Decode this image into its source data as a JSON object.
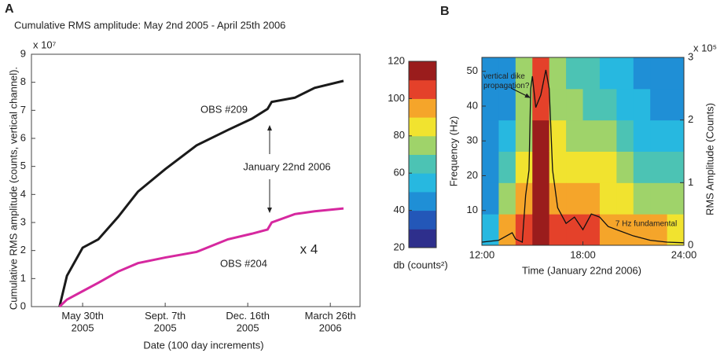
{
  "chart_data": [
    {
      "type": "line",
      "panel_label": "A",
      "title": "Cumulative RMS amplitude:  May 2nd 2005 - April 25th 2006",
      "y_exponent": "x 10⁷",
      "xlabel": "Date (100 day increments)",
      "ylabel": "Cumulative RMS amplitude (counts, vertical channel).",
      "x": [
        0,
        9,
        28,
        47,
        71,
        95,
        128,
        166,
        204,
        233,
        252,
        257,
        285,
        309,
        344
      ],
      "series": [
        {
          "name": "OBS #209",
          "color": "#1a1a1a",
          "values": [
            0,
            1.1,
            2.1,
            2.4,
            3.2,
            4.1,
            4.9,
            5.75,
            6.3,
            6.7,
            7.05,
            7.3,
            7.45,
            7.8,
            8.05
          ]
        },
        {
          "name": "OBS #204",
          "color": "#d6289f",
          "values": [
            0,
            0.25,
            0.55,
            0.85,
            1.25,
            1.55,
            1.75,
            1.95,
            2.4,
            2.6,
            2.75,
            3.0,
            3.3,
            3.4,
            3.5
          ]
        }
      ],
      "xlim": [
        -34,
        364
      ],
      "xticks": [
        {
          "value": 28,
          "label": "May 30th\n2005"
        },
        {
          "value": 128,
          "label": "Sept. 7th\n2005"
        },
        {
          "value": 228,
          "label": "Dec. 16th\n2005"
        },
        {
          "value": 328,
          "label": "March 26th\n2006"
        }
      ],
      "ylim": [
        0,
        9
      ],
      "yticks": [
        0,
        1,
        2,
        3,
        4,
        5,
        6,
        7,
        8,
        9
      ],
      "annotations": [
        {
          "text": "January 22nd 2006"
        },
        {
          "text": "x 4"
        }
      ]
    },
    {
      "type": "heatmap",
      "panel_label": "B",
      "xlabel": "Time (January 22nd 2006)",
      "ylabel": "Frequency (Hz)",
      "y2label": "RMS Amplitude (Counts)",
      "y2_exponent": "x 10⁵",
      "colorbar_label": "db (counts²)",
      "zlim": [
        20,
        120
      ],
      "colorbar_ticks": [
        20,
        40,
        60,
        80,
        100,
        120
      ],
      "colormap": [
        "#2e2f8c",
        "#2357b8",
        "#1f8fd6",
        "#27b8e0",
        "#4cc3b4",
        "#9fd36a",
        "#f1e32f",
        "#f5a52a",
        "#e4412a",
        "#9a1c1c"
      ],
      "xbins": [
        12,
        13,
        14,
        15,
        16,
        17,
        18,
        19,
        20,
        21,
        22,
        23,
        24
      ],
      "ybins": [
        0,
        9,
        18,
        27,
        36,
        45,
        54
      ],
      "values": [
        [
          55,
          45,
          42,
          40,
          40,
          40
        ],
        [
          90,
          75,
          60,
          50,
          45,
          45
        ],
        [
          100,
          95,
          85,
          75,
          70,
          70
        ],
        [
          115,
          112,
          110,
          110,
          108,
          105
        ],
        [
          105,
          95,
          88,
          80,
          75,
          70
        ],
        [
          102,
          92,
          85,
          78,
          72,
          68
        ],
        [
          100,
          90,
          82,
          75,
          68,
          62
        ],
        [
          98,
          88,
          80,
          72,
          65,
          58
        ],
        [
          95,
          82,
          72,
          62,
          55,
          50
        ],
        [
          92,
          78,
          68,
          58,
          50,
          45
        ],
        [
          90,
          75,
          65,
          55,
          48,
          45
        ],
        [
          88,
          72,
          62,
          52,
          45,
          42
        ]
      ],
      "xlim": [
        12,
        24
      ],
      "xticks": [
        {
          "value": 12,
          "label": "12:00"
        },
        {
          "value": 18,
          "label": "18:00"
        },
        {
          "value": 24,
          "label": "24:00"
        }
      ],
      "ylim": [
        0,
        54
      ],
      "yticks": [
        10,
        20,
        30,
        40,
        50
      ],
      "y2lim": [
        0,
        3
      ],
      "y2ticks": [
        0,
        1,
        2,
        3
      ],
      "line": {
        "axis": "y2",
        "color": "#111111",
        "x": [
          12,
          13,
          13.8,
          14,
          14.4,
          14.6,
          14.8,
          14.9,
          15,
          15.2,
          15.5,
          15.8,
          16,
          16.2,
          16.5,
          17,
          17.5,
          18,
          18.5,
          19,
          19.5,
          20,
          21,
          22,
          23,
          24
        ],
        "values": [
          0.05,
          0.08,
          0.2,
          0.1,
          0.05,
          0.8,
          1.2,
          2.5,
          2.7,
          2.2,
          2.4,
          2.8,
          2.5,
          1.2,
          0.6,
          0.35,
          0.45,
          0.25,
          0.5,
          0.45,
          0.3,
          0.25,
          0.15,
          0.08,
          0.05,
          0.04
        ]
      },
      "annotations": [
        {
          "text": "vertical dike\npropagation?"
        },
        {
          "text": "7 Hz fundamental"
        }
      ]
    }
  ]
}
